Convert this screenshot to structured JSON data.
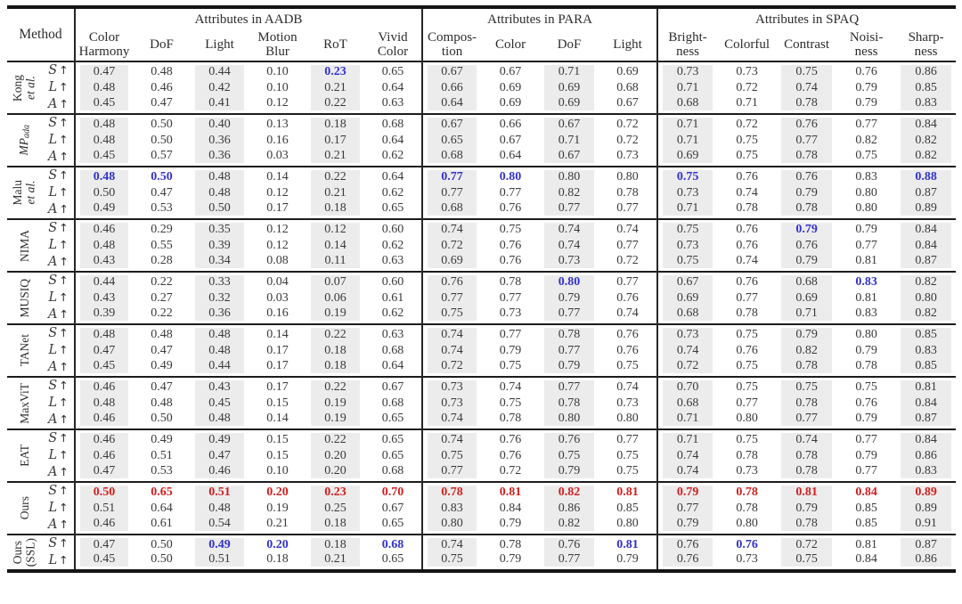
{
  "table": {
    "method_header": "Method",
    "metric_arrow": "↑",
    "colors": {
      "best": "#d01f1f",
      "second": "#3232cc",
      "shade": "#ececec",
      "text": "#3a3a3a"
    },
    "groups_header": [
      {
        "label": "Attributes in AADB",
        "span": 6
      },
      {
        "label": "Attributes in PARA",
        "span": 4
      },
      {
        "label": "Attributes in SPAQ",
        "span": 5
      }
    ],
    "columns": [
      "Color\nHarmony",
      "DoF",
      "Light",
      "Motion\nBlur",
      "RoT",
      "Vivid\nColor",
      "Compos-\ntion",
      "Color",
      "DoF",
      "Light",
      "Bright-\nness",
      "Colorful",
      "Contrast",
      "Noisi-\nness",
      "Sharp-\nness"
    ],
    "groups": [
      {
        "name_lines": [
          {
            "text": "Kong"
          },
          {
            "text": "et al.",
            "italic": true
          }
        ],
        "rows": [
          {
            "metric": "S",
            "values": [
              "0.47",
              "0.48",
              "0.44",
              "0.10",
              "0.23",
              "0.65",
              "0.67",
              "0.67",
              "0.71",
              "0.69",
              "0.73",
              "0.73",
              "0.75",
              "0.76",
              "0.86"
            ],
            "marks": {
              "4": "second"
            }
          },
          {
            "metric": "L",
            "values": [
              "0.48",
              "0.46",
              "0.42",
              "0.10",
              "0.21",
              "0.64",
              "0.66",
              "0.69",
              "0.69",
              "0.68",
              "0.71",
              "0.72",
              "0.74",
              "0.79",
              "0.85"
            ],
            "marks": {}
          },
          {
            "metric": "A",
            "values": [
              "0.45",
              "0.47",
              "0.41",
              "0.12",
              "0.22",
              "0.63",
              "0.64",
              "0.69",
              "0.69",
              "0.67",
              "0.68",
              "0.71",
              "0.78",
              "0.79",
              "0.83"
            ],
            "marks": {}
          }
        ]
      },
      {
        "name_lines": [
          {
            "text": "MP",
            "italic": true,
            "sub": "ada"
          }
        ],
        "rows": [
          {
            "metric": "S",
            "values": [
              "0.48",
              "0.50",
              "0.40",
              "0.13",
              "0.18",
              "0.68",
              "0.67",
              "0.66",
              "0.67",
              "0.72",
              "0.71",
              "0.72",
              "0.76",
              "0.77",
              "0.84"
            ],
            "marks": {}
          },
          {
            "metric": "L",
            "values": [
              "0.48",
              "0.50",
              "0.36",
              "0.16",
              "0.17",
              "0.64",
              "0.65",
              "0.67",
              "0.71",
              "0.72",
              "0.71",
              "0.75",
              "0.77",
              "0.82",
              "0.82"
            ],
            "marks": {}
          },
          {
            "metric": "A",
            "values": [
              "0.45",
              "0.57",
              "0.36",
              "0.03",
              "0.21",
              "0.62",
              "0.68",
              "0.64",
              "0.67",
              "0.73",
              "0.69",
              "0.75",
              "0.78",
              "0.75",
              "0.82"
            ],
            "marks": {}
          }
        ]
      },
      {
        "name_lines": [
          {
            "text": "Malu"
          },
          {
            "text": "et al.",
            "italic": true
          }
        ],
        "rows": [
          {
            "metric": "S",
            "values": [
              "0.48",
              "0.50",
              "0.48",
              "0.14",
              "0.22",
              "0.64",
              "0.77",
              "0.80",
              "0.80",
              "0.80",
              "0.75",
              "0.76",
              "0.76",
              "0.83",
              "0.88"
            ],
            "marks": {
              "0": "second",
              "1": "second",
              "6": "second",
              "7": "second",
              "10": "second",
              "14": "second"
            }
          },
          {
            "metric": "L",
            "values": [
              "0.50",
              "0.47",
              "0.48",
              "0.12",
              "0.21",
              "0.62",
              "0.77",
              "0.77",
              "0.82",
              "0.78",
              "0.73",
              "0.74",
              "0.79",
              "0.80",
              "0.87"
            ],
            "marks": {}
          },
          {
            "metric": "A",
            "values": [
              "0.49",
              "0.53",
              "0.50",
              "0.17",
              "0.18",
              "0.65",
              "0.68",
              "0.76",
              "0.77",
              "0.77",
              "0.71",
              "0.78",
              "0.78",
              "0.80",
              "0.89"
            ],
            "marks": {}
          }
        ]
      },
      {
        "name_lines": [
          {
            "text": "NIMA"
          }
        ],
        "rows": [
          {
            "metric": "S",
            "values": [
              "0.46",
              "0.29",
              "0.35",
              "0.12",
              "0.12",
              "0.60",
              "0.74",
              "0.75",
              "0.74",
              "0.74",
              "0.75",
              "0.76",
              "0.79",
              "0.79",
              "0.84"
            ],
            "marks": {
              "12": "second"
            }
          },
          {
            "metric": "L",
            "values": [
              "0.48",
              "0.55",
              "0.39",
              "0.12",
              "0.14",
              "0.62",
              "0.72",
              "0.76",
              "0.74",
              "0.77",
              "0.73",
              "0.76",
              "0.76",
              "0.77",
              "0.84"
            ],
            "marks": {}
          },
          {
            "metric": "A",
            "values": [
              "0.43",
              "0.28",
              "0.34",
              "0.08",
              "0.11",
              "0.63",
              "0.69",
              "0.76",
              "0.73",
              "0.72",
              "0.75",
              "0.74",
              "0.79",
              "0.81",
              "0.87"
            ],
            "marks": {}
          }
        ]
      },
      {
        "name_lines": [
          {
            "text": "MUSIQ"
          }
        ],
        "rows": [
          {
            "metric": "S",
            "values": [
              "0.44",
              "0.22",
              "0.33",
              "0.04",
              "0.07",
              "0.60",
              "0.76",
              "0.78",
              "0.80",
              "0.77",
              "0.67",
              "0.76",
              "0.68",
              "0.83",
              "0.82"
            ],
            "marks": {
              "8": "second",
              "13": "second"
            }
          },
          {
            "metric": "L",
            "values": [
              "0.43",
              "0.27",
              "0.32",
              "0.03",
              "0.06",
              "0.61",
              "0.77",
              "0.77",
              "0.79",
              "0.76",
              "0.69",
              "0.77",
              "0.69",
              "0.81",
              "0.80"
            ],
            "marks": {}
          },
          {
            "metric": "A",
            "values": [
              "0.39",
              "0.22",
              "0.36",
              "0.16",
              "0.19",
              "0.62",
              "0.75",
              "0.73",
              "0.77",
              "0.74",
              "0.68",
              "0.78",
              "0.71",
              "0.83",
              "0.82"
            ],
            "marks": {}
          }
        ]
      },
      {
        "name_lines": [
          {
            "text": "TANet"
          }
        ],
        "rows": [
          {
            "metric": "S",
            "values": [
              "0.48",
              "0.48",
              "0.48",
              "0.14",
              "0.22",
              "0.63",
              "0.74",
              "0.77",
              "0.78",
              "0.76",
              "0.73",
              "0.75",
              "0.79",
              "0.80",
              "0.85"
            ],
            "marks": {}
          },
          {
            "metric": "L",
            "values": [
              "0.47",
              "0.47",
              "0.48",
              "0.17",
              "0.18",
              "0.68",
              "0.74",
              "0.79",
              "0.77",
              "0.76",
              "0.74",
              "0.76",
              "0.82",
              "0.79",
              "0.83"
            ],
            "marks": {}
          },
          {
            "metric": "A",
            "values": [
              "0.45",
              "0.49",
              "0.44",
              "0.17",
              "0.18",
              "0.64",
              "0.72",
              "0.75",
              "0.79",
              "0.75",
              "0.72",
              "0.75",
              "0.78",
              "0.78",
              "0.85"
            ],
            "marks": {}
          }
        ]
      },
      {
        "name_lines": [
          {
            "text": "MaxViT"
          }
        ],
        "rows": [
          {
            "metric": "S",
            "values": [
              "0.46",
              "0.47",
              "0.43",
              "0.17",
              "0.22",
              "0.67",
              "0.73",
              "0.74",
              "0.77",
              "0.74",
              "0.70",
              "0.75",
              "0.75",
              "0.75",
              "0.81"
            ],
            "marks": {}
          },
          {
            "metric": "L",
            "values": [
              "0.48",
              "0.48",
              "0.45",
              "0.15",
              "0.19",
              "0.68",
              "0.73",
              "0.75",
              "0.78",
              "0.73",
              "0.68",
              "0.77",
              "0.78",
              "0.76",
              "0.84"
            ],
            "marks": {}
          },
          {
            "metric": "A",
            "values": [
              "0.46",
              "0.50",
              "0.48",
              "0.14",
              "0.19",
              "0.65",
              "0.74",
              "0.78",
              "0.80",
              "0.80",
              "0.71",
              "0.80",
              "0.77",
              "0.79",
              "0.87"
            ],
            "marks": {}
          }
        ]
      },
      {
        "name_lines": [
          {
            "text": "EAT"
          }
        ],
        "rows": [
          {
            "metric": "S",
            "values": [
              "0.46",
              "0.49",
              "0.49",
              "0.15",
              "0.22",
              "0.65",
              "0.74",
              "0.76",
              "0.76",
              "0.77",
              "0.71",
              "0.75",
              "0.74",
              "0.77",
              "0.84"
            ],
            "marks": {}
          },
          {
            "metric": "L",
            "values": [
              "0.46",
              "0.51",
              "0.47",
              "0.15",
              "0.20",
              "0.65",
              "0.75",
              "0.76",
              "0.75",
              "0.75",
              "0.74",
              "0.78",
              "0.78",
              "0.79",
              "0.86"
            ],
            "marks": {}
          },
          {
            "metric": "A",
            "values": [
              "0.47",
              "0.53",
              "0.46",
              "0.10",
              "0.20",
              "0.68",
              "0.77",
              "0.72",
              "0.79",
              "0.75",
              "0.74",
              "0.73",
              "0.78",
              "0.77",
              "0.83"
            ],
            "marks": {}
          }
        ]
      },
      {
        "name_lines": [
          {
            "text": "Ours"
          }
        ],
        "rows": [
          {
            "metric": "S",
            "values": [
              "0.50",
              "0.65",
              "0.51",
              "0.20",
              "0.23",
              "0.70",
              "0.78",
              "0.81",
              "0.82",
              "0.81",
              "0.79",
              "0.78",
              "0.81",
              "0.84",
              "0.89"
            ],
            "marks": {
              "0": "best",
              "1": "best",
              "2": "best",
              "3": "best",
              "4": "best",
              "5": "best",
              "6": "best",
              "7": "best",
              "8": "best",
              "9": "best",
              "10": "best",
              "11": "best",
              "12": "best",
              "13": "best",
              "14": "best"
            }
          },
          {
            "metric": "L",
            "values": [
              "0.51",
              "0.64",
              "0.48",
              "0.19",
              "0.25",
              "0.67",
              "0.83",
              "0.84",
              "0.86",
              "0.85",
              "0.77",
              "0.78",
              "0.79",
              "0.85",
              "0.89"
            ],
            "marks": {}
          },
          {
            "metric": "A",
            "values": [
              "0.46",
              "0.61",
              "0.54",
              "0.21",
              "0.18",
              "0.65",
              "0.80",
              "0.79",
              "0.82",
              "0.80",
              "0.79",
              "0.80",
              "0.78",
              "0.85",
              "0.91"
            ],
            "marks": {}
          }
        ]
      },
      {
        "name_lines": [
          {
            "text": "Ours"
          },
          {
            "text": "(SSL)"
          }
        ],
        "rows": [
          {
            "metric": "S",
            "values": [
              "0.47",
              "0.50",
              "0.49",
              "0.20",
              "0.18",
              "0.68",
              "0.74",
              "0.78",
              "0.76",
              "0.81",
              "0.76",
              "0.76",
              "0.72",
              "0.81",
              "0.87"
            ],
            "marks": {
              "2": "second",
              "3": "second",
              "5": "second",
              "9": "second",
              "11": "second"
            }
          },
          {
            "metric": "L",
            "values": [
              "0.45",
              "0.50",
              "0.51",
              "0.18",
              "0.21",
              "0.65",
              "0.75",
              "0.79",
              "0.77",
              "0.79",
              "0.76",
              "0.73",
              "0.75",
              "0.84",
              "0.86"
            ],
            "marks": {}
          }
        ]
      }
    ]
  }
}
